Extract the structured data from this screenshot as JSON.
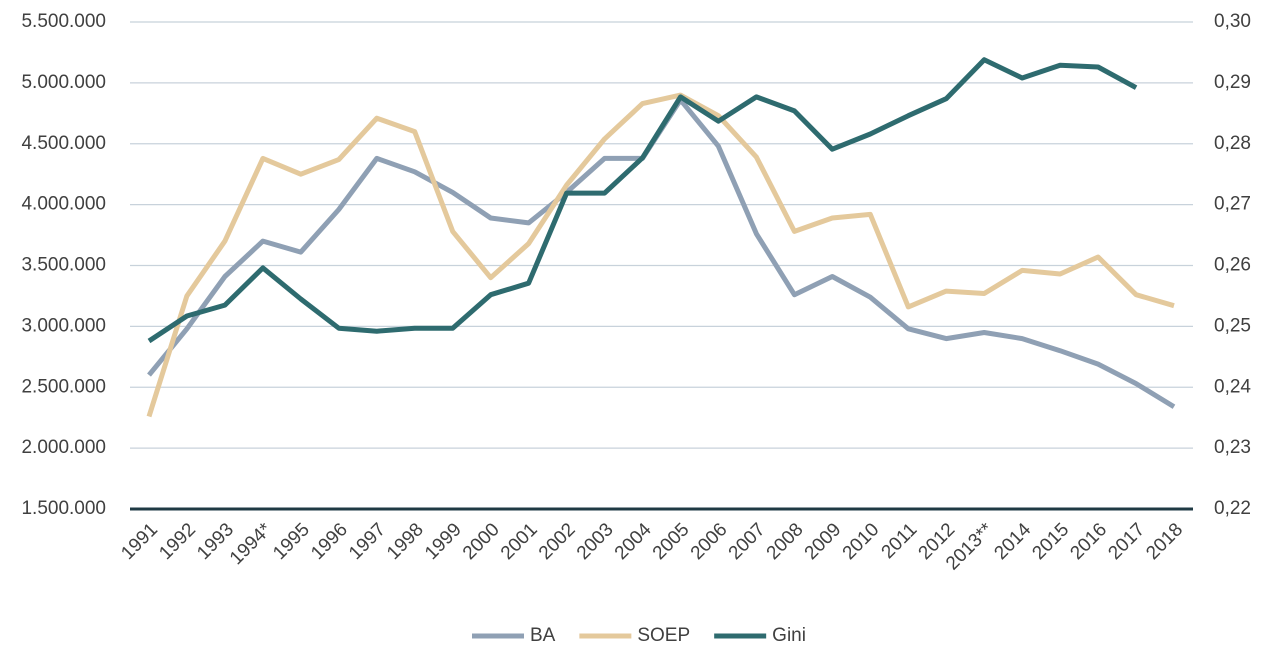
{
  "chart_data": {
    "type": "line",
    "categories": [
      "1991",
      "1992",
      "1993",
      "1994*",
      "1995",
      "1996",
      "1997",
      "1998",
      "1999",
      "2000",
      "2001",
      "2002",
      "2003",
      "2004",
      "2005",
      "2006",
      "2007",
      "2008",
      "2009",
      "2010",
      "2011",
      "2012",
      "2013**",
      "2014",
      "2015",
      "2016",
      "2017",
      "2018"
    ],
    "series": [
      {
        "name": "BA",
        "color": "#8fa0b4",
        "axis": "y",
        "values": [
          2600000,
          2980000,
          3410000,
          3700000,
          3610000,
          3960000,
          4380000,
          4270000,
          4100000,
          3890000,
          3850000,
          4100000,
          4380000,
          4380000,
          4860000,
          4480000,
          3760000,
          3260000,
          3410000,
          3240000,
          2980000,
          2900000,
          2950000,
          2900000,
          2800000,
          2690000,
          2530000,
          2340000
        ]
      },
      {
        "name": "SOEP",
        "color": "#e4c99c",
        "axis": "y",
        "values": [
          2260000,
          3250000,
          3700000,
          4380000,
          4250000,
          4370000,
          4710000,
          4600000,
          3780000,
          3400000,
          3680000,
          4160000,
          4540000,
          4830000,
          4900000,
          4730000,
          4390000,
          3780000,
          3890000,
          3920000,
          3160000,
          3290000,
          3270000,
          3460000,
          3430000,
          3570000,
          3260000,
          3170000
        ]
      },
      {
        "name": "Gini",
        "color": "#2e6b6f",
        "axis": "y2",
        "values": [
          0.2476,
          0.2517,
          0.2535,
          0.2596,
          0.2545,
          0.2497,
          0.2492,
          0.2497,
          0.2497,
          0.2552,
          0.2571,
          0.2719,
          0.2719,
          0.2777,
          0.2877,
          0.2837,
          0.2877,
          0.2854,
          0.2791,
          0.2816,
          0.2846,
          0.2874,
          0.2938,
          0.2908,
          0.2929,
          0.2926,
          0.2892,
          null
        ]
      }
    ],
    "ylim": [
      1500000,
      5500000
    ],
    "yticks": [
      {
        "value": 1500000,
        "label": "1.500.000"
      },
      {
        "value": 2000000,
        "label": "2.000.000"
      },
      {
        "value": 2500000,
        "label": "2.500.000"
      },
      {
        "value": 3000000,
        "label": "3.000.000"
      },
      {
        "value": 3500000,
        "label": "3.500.000"
      },
      {
        "value": 4000000,
        "label": "4.000.000"
      },
      {
        "value": 4500000,
        "label": "4.500.000"
      },
      {
        "value": 5000000,
        "label": "5.000.000"
      },
      {
        "value": 5500000,
        "label": "5.500.000"
      }
    ],
    "y2lim": [
      0.22,
      0.3
    ],
    "y2ticks": [
      {
        "value": 0.22,
        "label": "0,22"
      },
      {
        "value": 0.23,
        "label": "0,23"
      },
      {
        "value": 0.24,
        "label": "0,24"
      },
      {
        "value": 0.25,
        "label": "0,25"
      },
      {
        "value": 0.26,
        "label": "0,26"
      },
      {
        "value": 0.27,
        "label": "0,27"
      },
      {
        "value": 0.28,
        "label": "0,28"
      },
      {
        "value": 0.29,
        "label": "0,29"
      },
      {
        "value": 0.3,
        "label": "0,30"
      }
    ],
    "grid": true,
    "legend": "bottom"
  }
}
